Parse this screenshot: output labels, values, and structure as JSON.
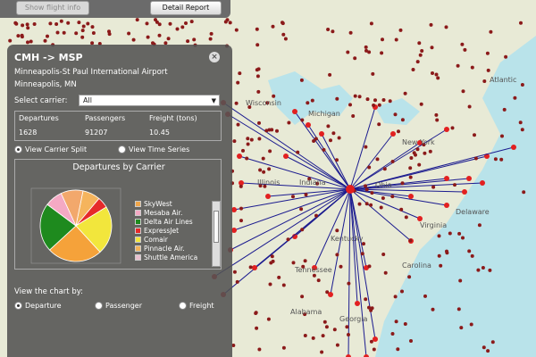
{
  "toolbar": {
    "show_flight_info": "Show flight info",
    "detail_report": "Detail Report"
  },
  "panel": {
    "route": "CMH -> MSP",
    "airport": "Minneapolis-St Paul International Airport",
    "city": "Minneapolis, MN",
    "select_label": "Select carrier:",
    "select_value": "All",
    "stats": {
      "departures_label": "Departures",
      "passengers_label": "Passengers",
      "freight_label": "Freight (tons)",
      "departures": "1628",
      "passengers": "91207",
      "freight": "10.45"
    },
    "view_carrier_split": "View Carrier Split",
    "view_time_series": "View Time Series",
    "chart_title": "Departures by Carrier",
    "view_by_label": "View the chart by:",
    "opt_departure": "Departure",
    "opt_passenger": "Passenger",
    "opt_freight": "Freight"
  },
  "legend": [
    {
      "label": "SkyWest",
      "color": "#f0a64a"
    },
    {
      "label": "Mesaba Air.",
      "color": "#f4a9c4"
    },
    {
      "label": "Delta Air Lines",
      "color": "#1e8a1e"
    },
    {
      "label": "ExpressJet",
      "color": "#e62a2a"
    },
    {
      "label": "Comair",
      "color": "#f2e63c"
    },
    {
      "label": "Pinnacle Air.",
      "color": "#f2b25a"
    },
    {
      "label": "Shuttle America",
      "color": "#e9c0cf"
    }
  ],
  "pie_colors": [
    "#f5b45d",
    "#e62a2a",
    "#f2e63c",
    "#f5a23a",
    "#1e8a1e",
    "#f4a9c4",
    "#f2a86c"
  ],
  "map_labels": [
    "Wisconsin",
    "Michigan",
    "Illinois",
    "Indiana",
    "Ohio",
    "New York",
    "Delaware",
    "Atlantic",
    "Virginia",
    "Kentucky",
    "Tennessee",
    "Carolina",
    "Georgia",
    "Alabama"
  ],
  "colors": {
    "route_line": "#1b1b8f",
    "airport_dot": "#8b1a1a",
    "land": "#e8ead6",
    "water": "#b9e3ea"
  }
}
